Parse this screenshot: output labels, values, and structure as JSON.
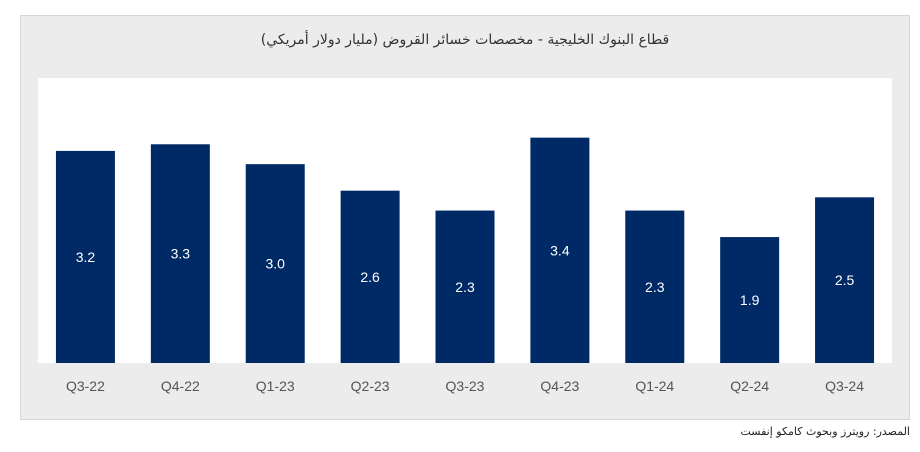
{
  "chart_data": {
    "type": "bar",
    "title": "قطاع البنوك الخليجية - مخصصات خسائر القروض (مليار دولار أمريكي)",
    "categories": [
      "Q3-22",
      "Q4-22",
      "Q1-23",
      "Q2-23",
      "Q3-23",
      "Q4-23",
      "Q1-24",
      "Q2-24",
      "Q3-24"
    ],
    "values": [
      3.2,
      3.3,
      3.0,
      2.6,
      2.3,
      3.4,
      2.3,
      1.9,
      2.5
    ],
    "value_labels": [
      "3.2",
      "3.3",
      "3.0",
      "2.6",
      "2.3",
      "3.4",
      "2.3",
      "1.9",
      "2.5"
    ],
    "xlabel": "",
    "ylabel": "",
    "ylim": [
      0,
      4.3
    ],
    "grid": false,
    "legend": "none",
    "bar_color": "#002a66",
    "plot_background": "#ffffff",
    "panel_background": "#ececec",
    "label_color": "#ffffff"
  },
  "source": "المصدر: رويترز وبحوث كامكو إنفست"
}
